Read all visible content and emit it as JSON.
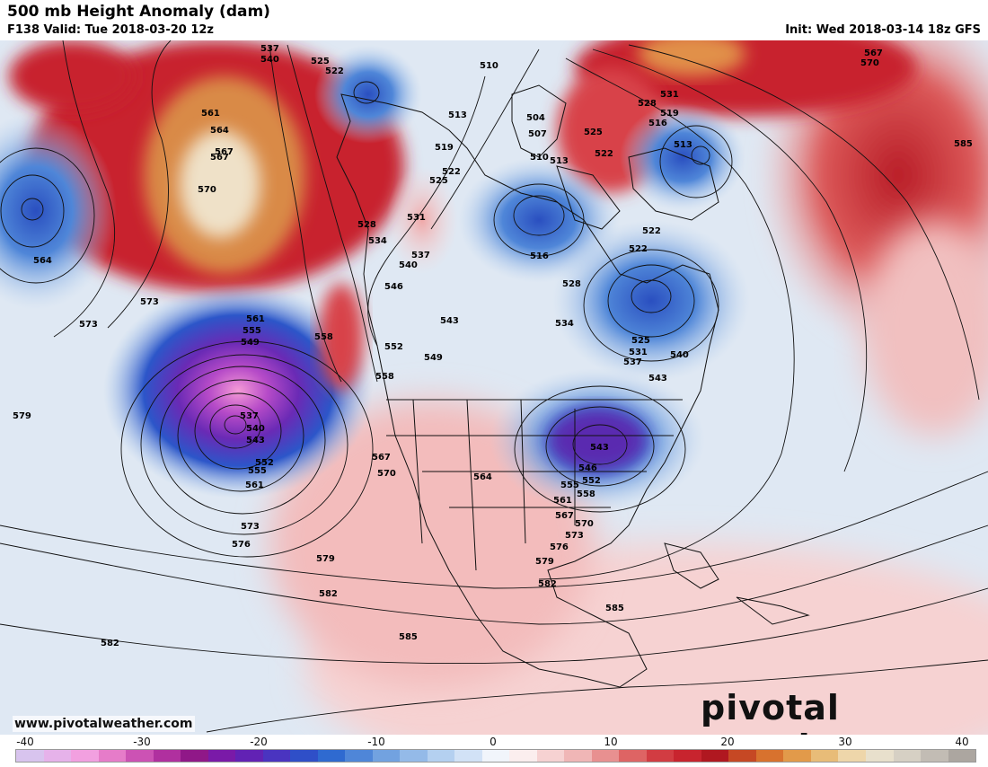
{
  "header": {
    "title": "500 mb Height Anomaly (dam)",
    "valid": "F138 Valid: Tue 2018-03-20 12z",
    "init": "Init: Wed 2018-03-14 18z GFS"
  },
  "footer": {
    "website": "www.pivotalweather.com",
    "logo": "pivotal weather"
  },
  "colorbar": {
    "ticks": [
      "-40",
      "-30",
      "-20",
      "-10",
      "0",
      "10",
      "20",
      "30",
      "40"
    ]
  },
  "contour_labels": [
    {
      "text": "537"
    },
    {
      "text": "540"
    },
    {
      "text": "525"
    },
    {
      "text": "522"
    },
    {
      "text": "510"
    },
    {
      "text": "513"
    },
    {
      "text": "561"
    },
    {
      "text": "564"
    },
    {
      "text": "567"
    },
    {
      "text": "570"
    },
    {
      "text": "519"
    },
    {
      "text": "522"
    },
    {
      "text": "525"
    },
    {
      "text": "528"
    },
    {
      "text": "531"
    },
    {
      "text": "534"
    },
    {
      "text": "537"
    },
    {
      "text": "540"
    },
    {
      "text": "546"
    },
    {
      "text": "543"
    },
    {
      "text": "549"
    },
    {
      "text": "552"
    },
    {
      "text": "558"
    },
    {
      "text": "558"
    },
    {
      "text": "564"
    },
    {
      "text": "567"
    },
    {
      "text": "573"
    },
    {
      "text": "573"
    },
    {
      "text": "561"
    },
    {
      "text": "555"
    },
    {
      "text": "549"
    },
    {
      "text": "537"
    },
    {
      "text": "540"
    },
    {
      "text": "543"
    },
    {
      "text": "552"
    },
    {
      "text": "555"
    },
    {
      "text": "561"
    },
    {
      "text": "579"
    },
    {
      "text": "573"
    },
    {
      "text": "576"
    },
    {
      "text": "579"
    },
    {
      "text": "582"
    },
    {
      "text": "582"
    },
    {
      "text": "585"
    },
    {
      "text": "567"
    },
    {
      "text": "570"
    },
    {
      "text": "564"
    },
    {
      "text": "516"
    },
    {
      "text": "504"
    },
    {
      "text": "507"
    },
    {
      "text": "510"
    },
    {
      "text": "513"
    },
    {
      "text": "525"
    },
    {
      "text": "522"
    },
    {
      "text": "528"
    },
    {
      "text": "531"
    },
    {
      "text": "516"
    },
    {
      "text": "519"
    },
    {
      "text": "513"
    },
    {
      "text": "522"
    },
    {
      "text": "522"
    },
    {
      "text": "528"
    },
    {
      "text": "534"
    },
    {
      "text": "525"
    },
    {
      "text": "531"
    },
    {
      "text": "537"
    },
    {
      "text": "540"
    },
    {
      "text": "543"
    },
    {
      "text": "543"
    },
    {
      "text": "546"
    },
    {
      "text": "552"
    },
    {
      "text": "555"
    },
    {
      "text": "558"
    },
    {
      "text": "561"
    },
    {
      "text": "567"
    },
    {
      "text": "570"
    },
    {
      "text": "573"
    },
    {
      "text": "576"
    },
    {
      "text": "579"
    },
    {
      "text": "582"
    },
    {
      "text": "585"
    },
    {
      "text": "567"
    },
    {
      "text": "570"
    },
    {
      "text": "585"
    }
  ],
  "colors": {
    "strong_negative": "#7a1aa8",
    "negative": "#2f5fc8",
    "weak_negative": "#a9c7ea",
    "weak_positive": "#f3c4c4",
    "positive": "#c8242e",
    "strong_positive": "#e29a4a"
  }
}
